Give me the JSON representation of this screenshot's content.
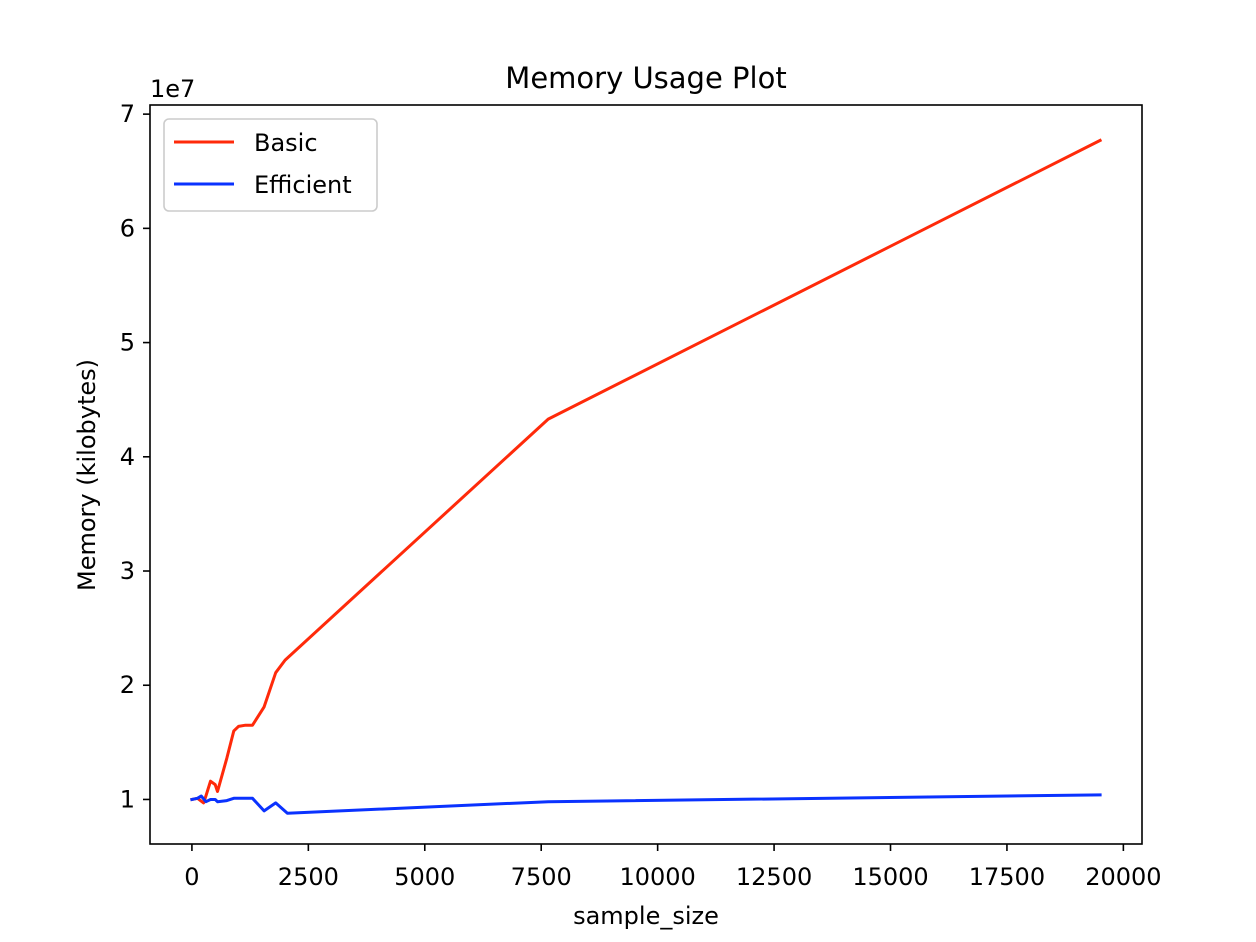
{
  "chart_data": {
    "type": "line",
    "title": "Memory Usage Plot",
    "xlabel": "sample_size",
    "ylabel": "Memory (kilobytes)",
    "y_offset_label": "1e7",
    "xlim": [
      -900,
      20400
    ],
    "ylim": [
      6100000,
      70800000
    ],
    "x_ticks": [
      0,
      2500,
      5000,
      7500,
      10000,
      12500,
      15000,
      17500,
      20000
    ],
    "x_tick_labels": [
      "0",
      "2500",
      "5000",
      "7500",
      "10000",
      "12500",
      "15000",
      "17500",
      "20000"
    ],
    "y_ticks": [
      10000000,
      20000000,
      30000000,
      40000000,
      50000000,
      60000000,
      70000000
    ],
    "y_tick_labels": [
      "1",
      "2",
      "3",
      "4",
      "5",
      "6",
      "7"
    ],
    "grid": false,
    "legend_position": "top-left",
    "series": [
      {
        "name": "Basic",
        "color": "#ff2a0a",
        "x": [
          0,
          120,
          250,
          300,
          400,
          500,
          550,
          750,
          900,
          1000,
          1150,
          1300,
          1550,
          1800,
          2000,
          7650,
          19500
        ],
        "y": [
          10000000,
          10100000,
          9700000,
          10300000,
          11600000,
          11300000,
          10700000,
          13600000,
          16000000,
          16400000,
          16500000,
          16500000,
          18100000,
          21100000,
          22200000,
          43300000,
          67700000
        ]
      },
      {
        "name": "Efficient",
        "color": "#0a32ff",
        "x": [
          0,
          120,
          200,
          300,
          400,
          500,
          550,
          750,
          900,
          1000,
          1150,
          1300,
          1550,
          1800,
          2050,
          7650,
          19500
        ],
        "y": [
          10000000,
          10100000,
          10300000,
          9800000,
          10000000,
          10000000,
          9800000,
          9900000,
          10100000,
          10100000,
          10100000,
          10100000,
          9000000,
          9700000,
          8800000,
          9800000,
          10400000
        ]
      }
    ]
  }
}
